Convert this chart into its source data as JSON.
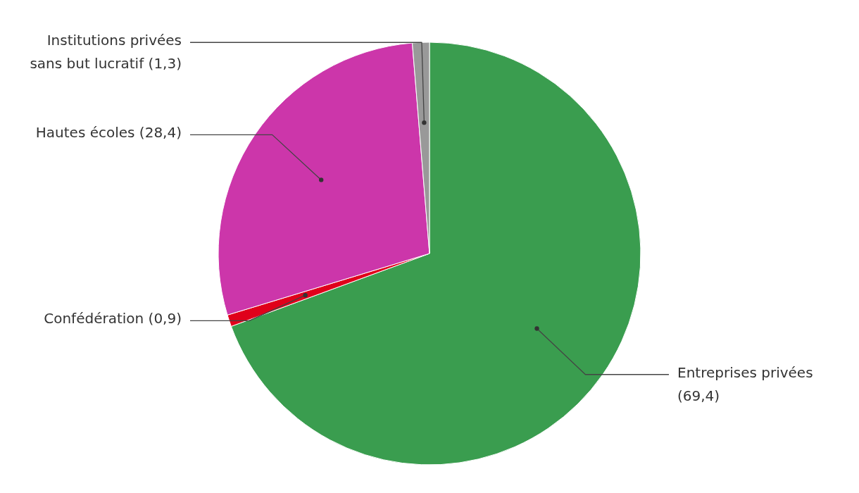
{
  "chart_data": {
    "type": "pie",
    "categories": [
      "Entreprises privées",
      "Confédération",
      "Hautes écoles",
      "Institutions privées sans but lucratif"
    ],
    "values": [
      69.4,
      0.9,
      28.4,
      1.3
    ],
    "value_labels": [
      "(69,4)",
      "(0,9)",
      "(28,4)",
      "(1,3)"
    ],
    "colors": [
      "#3a9d4f",
      "#e0001b",
      "#cc36aa",
      "#999999"
    ]
  }
}
